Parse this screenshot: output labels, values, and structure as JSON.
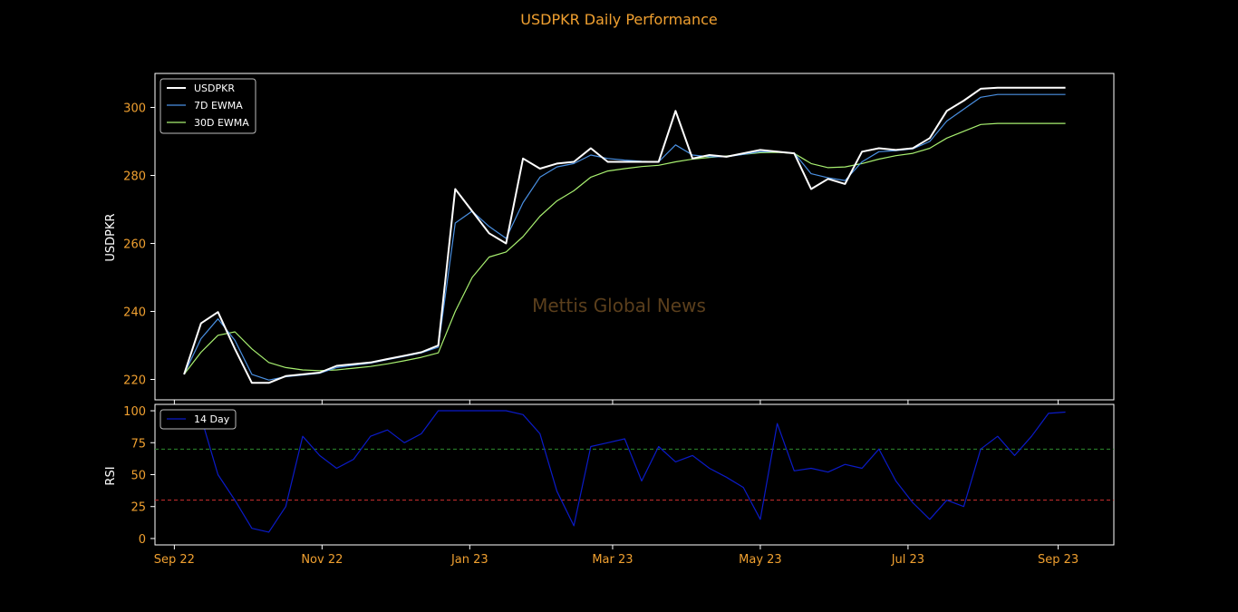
{
  "chart_data": [
    {
      "type": "line",
      "title": "USDPKR Daily Performance",
      "watermark": "Mettis Global News",
      "ylabel": "USDPKR",
      "ylim": [
        214,
        310
      ],
      "yticks": [
        220,
        240,
        260,
        280,
        300
      ],
      "legend": "top-left",
      "x": [
        "2022-09-05",
        "2022-09-12",
        "2022-09-19",
        "2022-09-26",
        "2022-10-03",
        "2022-10-10",
        "2022-10-17",
        "2022-10-24",
        "2022-10-31",
        "2022-11-07",
        "2022-11-14",
        "2022-11-21",
        "2022-11-28",
        "2022-12-05",
        "2022-12-12",
        "2022-12-19",
        "2022-12-26",
        "2023-01-02",
        "2023-01-09",
        "2023-01-16",
        "2023-01-23",
        "2023-01-30",
        "2023-02-06",
        "2023-02-13",
        "2023-02-20",
        "2023-02-27",
        "2023-03-06",
        "2023-03-13",
        "2023-03-20",
        "2023-03-27",
        "2023-04-03",
        "2023-04-10",
        "2023-04-17",
        "2023-04-24",
        "2023-05-01",
        "2023-05-08",
        "2023-05-15",
        "2023-05-22",
        "2023-05-29",
        "2023-06-05",
        "2023-06-12",
        "2023-06-19",
        "2023-06-26",
        "2023-07-03",
        "2023-07-10",
        "2023-07-17",
        "2023-07-24",
        "2023-07-31",
        "2023-08-07",
        "2023-08-14",
        "2023-08-21",
        "2023-08-28",
        "2023-09-04"
      ],
      "series": [
        {
          "name": "USDPKR",
          "color": "#ffffff",
          "values": [
            221.5,
            236.5,
            239.8,
            229,
            219,
            219,
            221,
            221.5,
            222,
            224,
            224.5,
            225,
            226,
            227,
            228,
            230,
            276,
            269.5,
            263,
            260,
            285,
            282,
            283.5,
            284,
            288,
            284,
            284,
            284,
            284,
            299,
            285,
            286,
            285.5,
            286.5,
            287.5,
            287,
            286.5,
            276,
            279,
            277.5,
            287,
            288,
            287.5,
            288,
            291,
            299,
            302,
            305.5,
            305.8,
            305.8,
            305.8,
            305.8,
            305.8
          ]
        },
        {
          "name": "7D EWMA",
          "color": "#4a90e2",
          "values": [
            221.5,
            232,
            237.8,
            231.5,
            221.5,
            219.8,
            220.8,
            221.3,
            221.8,
            223.5,
            224.2,
            224.8,
            225.8,
            226.8,
            227.8,
            229.5,
            266,
            269.5,
            265,
            261.5,
            272,
            279.5,
            282.5,
            283.5,
            286,
            285,
            284.5,
            284.2,
            284,
            289,
            286,
            285.5,
            285.5,
            286.2,
            287,
            287,
            286.6,
            280.5,
            279.3,
            278.5,
            284,
            287,
            287.3,
            287.8,
            290,
            296,
            299.5,
            303,
            303.8,
            303.8,
            303.8,
            303.8,
            303.8
          ]
        },
        {
          "name": "30D EWMA",
          "color": "#a8f070",
          "values": [
            221.5,
            228,
            233,
            234,
            229,
            225,
            223.5,
            222.8,
            222.6,
            222.8,
            223.3,
            223.8,
            224.6,
            225.5,
            226.5,
            227.8,
            240,
            250,
            256,
            257.5,
            262,
            268,
            272.5,
            275.5,
            279.5,
            281.3,
            282,
            282.6,
            283,
            284,
            284.8,
            285.3,
            285.7,
            286.2,
            286.7,
            286.8,
            286.5,
            283.5,
            282.3,
            282.5,
            283.5,
            284.8,
            285.8,
            286.5,
            288,
            291,
            293,
            295,
            295.3,
            295.3,
            295.3,
            295.3,
            295.3
          ]
        }
      ]
    },
    {
      "type": "line",
      "ylabel": "RSI",
      "ylim": [
        -5,
        105
      ],
      "yticks": [
        0,
        25,
        50,
        75,
        100
      ],
      "legend": "top-left",
      "reference_lines": [
        {
          "value": 70,
          "color": "#2e8b2e"
        },
        {
          "value": 30,
          "color": "#d03030"
        }
      ],
      "xticks": [
        "Sep 22",
        "Nov 22",
        "Jan 23",
        "Mar 23",
        "May 23",
        "Jul 23",
        "Sep 23"
      ],
      "xtick_dates": [
        "2022-09-01",
        "2022-11-01",
        "2023-01-01",
        "2023-03-01",
        "2023-05-01",
        "2023-07-01",
        "2023-09-01"
      ],
      "x_range": [
        "2022-08-24",
        "2023-09-24"
      ],
      "series": [
        {
          "name": "14 Day",
          "color": "#0b1bc8",
          "values": [
            100,
            95,
            50,
            30,
            8,
            5,
            25,
            80,
            65,
            55,
            62,
            80,
            85,
            75,
            82,
            100,
            100,
            100,
            100,
            100,
            97,
            82,
            37,
            10,
            72,
            75,
            78,
            45,
            72,
            60,
            65,
            55,
            48,
            40,
            15,
            90,
            53,
            55,
            52,
            58,
            55,
            70,
            45,
            28,
            15,
            30,
            25,
            70,
            80,
            65,
            80,
            98,
            99
          ]
        }
      ]
    }
  ]
}
